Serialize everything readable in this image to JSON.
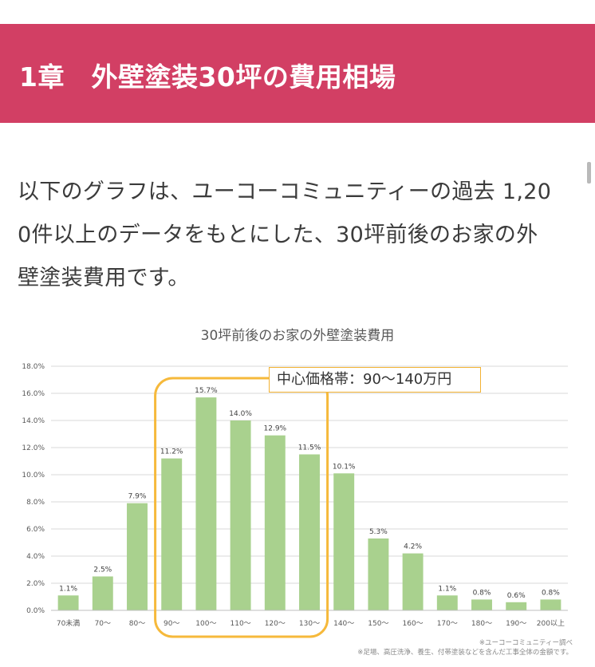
{
  "header": {
    "title": "1章　外壁塗装30坪の費用相場"
  },
  "intro": {
    "lines": [
      "以下のグラフは、ユーコーコミュニティーの過去 1,20",
      "0件以上のデータをもとにした、30坪前後のお家の外",
      "壁塗装費用です。"
    ]
  },
  "chart_data": {
    "type": "bar",
    "title": "30坪前後のお家の外壁塗装費用",
    "categories": [
      "70未満",
      "70〜",
      "80〜",
      "90〜",
      "100〜",
      "110〜",
      "120〜",
      "130〜",
      "140〜",
      "150〜",
      "160〜",
      "170〜",
      "180〜",
      "190〜",
      "200以上"
    ],
    "values": [
      1.1,
      2.5,
      7.9,
      11.2,
      15.7,
      14.0,
      12.9,
      11.5,
      10.1,
      5.3,
      4.2,
      1.1,
      0.8,
      0.6,
      0.8
    ],
    "data_labels": [
      "1.1%",
      "2.5%",
      "7.9%",
      "11.2%",
      "15.7%",
      "14.0%",
      "12.9%",
      "11.5%",
      "10.1%",
      "5.3%",
      "4.2%",
      "1.1%",
      "0.8%",
      "0.6%",
      "0.8%"
    ],
    "y_ticks": [
      "0.0%",
      "2.0%",
      "4.0%",
      "6.0%",
      "8.0%",
      "10.0%",
      "12.0%",
      "14.0%",
      "16.0%",
      "18.0%"
    ],
    "ylim": [
      0,
      18
    ],
    "grid": true,
    "highlight": {
      "label": "中心価格帯：90〜140万円",
      "from_category": "90〜",
      "to_category": "130〜"
    },
    "notes": [
      "※ユーコーコミュニティー調べ",
      "※足場、高圧洗浄、養生、付帯塗装などを含んだ工事全体の金額です。"
    ]
  },
  "colors": {
    "header_bg": "#d23f64",
    "bar": "#a9d18e",
    "highlight_border": "#f6b93b",
    "grid": "#d9d9d9"
  }
}
